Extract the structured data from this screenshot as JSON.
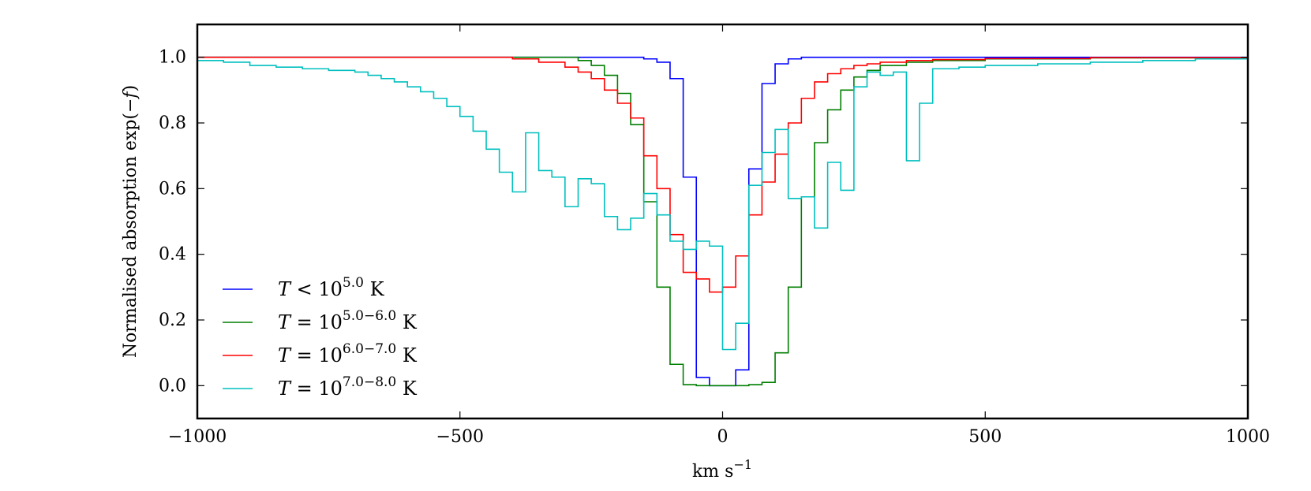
{
  "chart_data": {
    "type": "line",
    "title": "",
    "xlabel": "km s⁻¹",
    "ylabel": "Normalised absorption exp(−f)",
    "xlim": [
      -1000,
      1000
    ],
    "ylim": [
      -0.1,
      1.1
    ],
    "x_ticks": [
      -1000,
      -500,
      0,
      500,
      1000
    ],
    "x_tick_labels": [
      "−1000",
      "−500",
      "0",
      "500",
      "1000"
    ],
    "y_ticks": [
      0.0,
      0.2,
      0.4,
      0.6,
      0.8,
      1.0
    ],
    "y_tick_labels": [
      "0.0",
      "0.2",
      "0.4",
      "0.6",
      "0.8",
      "1.0"
    ],
    "grid": false,
    "legend_position": "lower-left",
    "draw_style": "steps",
    "series": [
      {
        "name": "T < 10^5.0 K",
        "legend_parts": {
          "lhs": "T",
          "op": " < 10",
          "exp": "5.0",
          "unit": " K"
        },
        "color": "#0000ff",
        "x": [
          -1000,
          -200,
          -150,
          -125,
          -100,
          -75,
          -50,
          -25,
          0,
          25,
          50,
          75,
          100,
          125,
          150,
          200,
          1000
        ],
        "y": [
          1.0,
          1.0,
          0.995,
          0.985,
          0.935,
          0.635,
          0.025,
          0.0,
          0.0,
          0.048,
          0.66,
          0.92,
          0.98,
          0.995,
          1.0,
          1.0,
          1.0
        ]
      },
      {
        "name": "T = 10^5.0−6.0 K",
        "legend_parts": {
          "lhs": "T",
          "op": " = 10",
          "exp": "5.0−6.0",
          "unit": " K"
        },
        "color": "#007f00",
        "x": [
          -1000,
          -300,
          -275,
          -250,
          -225,
          -200,
          -175,
          -150,
          -125,
          -100,
          -75,
          -50,
          0,
          50,
          75,
          100,
          125,
          150,
          175,
          200,
          225,
          250,
          275,
          300,
          350,
          400,
          500,
          700,
          1000
        ],
        "y": [
          1.0,
          1.0,
          0.99,
          0.975,
          0.945,
          0.89,
          0.795,
          0.56,
          0.3,
          0.065,
          0.003,
          0.0,
          0.0,
          0.003,
          0.01,
          0.1,
          0.3,
          0.575,
          0.74,
          0.84,
          0.9,
          0.94,
          0.96,
          0.975,
          0.985,
          0.99,
          0.995,
          0.998,
          1.0
        ]
      },
      {
        "name": "T = 10^6.0−7.0 K",
        "legend_parts": {
          "lhs": "T",
          "op": " = 10",
          "exp": "6.0−7.0",
          "unit": " K"
        },
        "color": "#ff0000",
        "x": [
          -1000,
          -400,
          -350,
          -300,
          -275,
          -250,
          -225,
          -200,
          -175,
          -150,
          -125,
          -100,
          -75,
          -50,
          -25,
          0,
          25,
          50,
          75,
          100,
          125,
          150,
          175,
          200,
          225,
          250,
          275,
          300,
          350,
          400,
          500,
          700,
          1000
        ],
        "y": [
          1.0,
          0.995,
          0.985,
          0.97,
          0.955,
          0.935,
          0.9,
          0.86,
          0.815,
          0.7,
          0.6,
          0.46,
          0.345,
          0.325,
          0.285,
          0.3,
          0.395,
          0.52,
          0.62,
          0.705,
          0.8,
          0.875,
          0.925,
          0.95,
          0.965,
          0.975,
          0.98,
          0.985,
          0.99,
          0.993,
          0.996,
          0.999,
          1.0
        ]
      },
      {
        "name": "T = 10^7.0−8.0 K",
        "legend_parts": {
          "lhs": "T",
          "op": " = 10",
          "exp": "7.0−8.0",
          "unit": " K"
        },
        "color": "#00bfbf",
        "x": [
          -1000,
          -950,
          -900,
          -850,
          -800,
          -750,
          -700,
          -675,
          -650,
          -625,
          -600,
          -575,
          -550,
          -525,
          -500,
          -475,
          -450,
          -425,
          -400,
          -375,
          -350,
          -325,
          -300,
          -275,
          -250,
          -225,
          -200,
          -175,
          -150,
          -125,
          -100,
          -75,
          -50,
          -25,
          0,
          25,
          50,
          75,
          100,
          125,
          150,
          175,
          200,
          225,
          250,
          275,
          300,
          325,
          350,
          375,
          400,
          450,
          500,
          600,
          700,
          800,
          900,
          1000
        ],
        "y": [
          0.99,
          0.985,
          0.975,
          0.97,
          0.965,
          0.96,
          0.955,
          0.945,
          0.935,
          0.925,
          0.91,
          0.895,
          0.875,
          0.85,
          0.82,
          0.775,
          0.72,
          0.65,
          0.59,
          0.77,
          0.655,
          0.635,
          0.545,
          0.63,
          0.615,
          0.515,
          0.475,
          0.51,
          0.585,
          0.52,
          0.44,
          0.415,
          0.44,
          0.425,
          0.11,
          0.19,
          0.61,
          0.71,
          0.78,
          0.57,
          0.575,
          0.48,
          0.68,
          0.595,
          0.91,
          0.955,
          0.945,
          0.955,
          0.685,
          0.86,
          0.965,
          0.97,
          0.975,
          0.98,
          0.985,
          0.99,
          0.995,
          1.0
        ]
      }
    ]
  }
}
